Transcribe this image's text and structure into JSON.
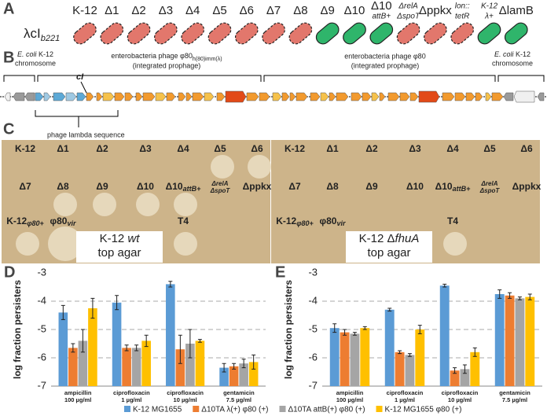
{
  "panel_a": {
    "label": "A",
    "lambda_text": "λcI",
    "lambda_sub": "b221",
    "strains": [
      {
        "lines": [
          "K-12"
        ],
        "color": "#e2776c"
      },
      {
        "lines": [
          "Δ1"
        ],
        "color": "#e2776c"
      },
      {
        "lines": [
          "Δ2"
        ],
        "color": "#e2776c"
      },
      {
        "lines": [
          "Δ3"
        ],
        "color": "#e2776c"
      },
      {
        "lines": [
          "Δ4"
        ],
        "color": "#e2776c"
      },
      {
        "lines": [
          "Δ5"
        ],
        "color": "#e2776c"
      },
      {
        "lines": [
          "Δ6"
        ],
        "color": "#e2776c"
      },
      {
        "lines": [
          "Δ7"
        ],
        "color": "#e2776c"
      },
      {
        "lines": [
          "Δ8"
        ],
        "color": "#e2776c"
      },
      {
        "lines": [
          "Δ9"
        ],
        "color": "#2fb56b"
      },
      {
        "lines": [
          "Δ10"
        ],
        "color": "#2fb56b"
      },
      {
        "lines": [
          "Δ10",
          "attB+"
        ],
        "color": "#2fb56b"
      },
      {
        "lines": [
          "ΔrelA",
          "ΔspoT"
        ],
        "color": "#e2776c"
      },
      {
        "lines": [
          "Δppkx"
        ],
        "color": "#e2776c"
      },
      {
        "lines": [
          "lon::",
          "tetR"
        ],
        "color": "#e2776c"
      },
      {
        "lines": [
          "K-12",
          "λ+"
        ],
        "color": "#2fb56b"
      },
      {
        "lines": [
          "ΔlamB"
        ],
        "color": "#2fb56b"
      }
    ]
  },
  "panel_b": {
    "label": "B",
    "chromosome_left": {
      "species": "E. coli",
      "strain": "K-12",
      "line2": "chromosome"
    },
    "chromosome_right": {
      "species": "E. coli",
      "strain": "K-12",
      "line2": "chromosome"
    },
    "prophage_1": {
      "name": "enterobacteria phage φ80",
      "sub": "h(80)imm(λ)",
      "note": "(integrated prophage)"
    },
    "prophage_2": {
      "name": "enterobacteria phage φ80",
      "note": "(integrated prophage)"
    },
    "gene": "cI",
    "lambda_region": "phage lambda sequence"
  },
  "panel_c": {
    "label": "C",
    "plates": [
      {
        "caption": [
          "K-12 ",
          "wt",
          "top agar"
        ],
        "rows": [
          [
            {
              "text": "K-12",
              "plaque": false
            },
            {
              "text": "Δ1",
              "plaque": false
            },
            {
              "text": "Δ2",
              "plaque": false
            },
            {
              "text": "Δ3",
              "plaque": false
            },
            {
              "text": "Δ4",
              "plaque": false
            },
            {
              "text": "Δ5",
              "plaque": true
            },
            {
              "text": "Δ6",
              "plaque": true
            }
          ],
          [
            {
              "text": "Δ7",
              "plaque": false
            },
            {
              "text": "Δ8",
              "plaque": true
            },
            {
              "text": "Δ9",
              "plaque": true
            },
            {
              "text": "Δ10",
              "plaque": true
            },
            {
              "text": "Δ10",
              "sub": "attB+",
              "plaque": true
            },
            {
              "text": "ΔrelA",
              "line2": "ΔspoT",
              "plaque": false
            },
            {
              "text": "Δppkx",
              "plaque": false
            }
          ],
          [
            {
              "text": "K-12",
              "sub": "φ80+",
              "plaque": true
            },
            {
              "text": "φ80",
              "sub": "vir",
              "plaque": true
            },
            {
              "text": "T4",
              "plaque": true
            }
          ]
        ]
      },
      {
        "caption": [
          "K-12 Δ",
          "fhuA",
          "top agar"
        ],
        "rows": [
          [
            {
              "text": "K-12",
              "plaque": false
            },
            {
              "text": "Δ1",
              "plaque": false
            },
            {
              "text": "Δ2",
              "plaque": false
            },
            {
              "text": "Δ3",
              "plaque": false
            },
            {
              "text": "Δ4",
              "plaque": false
            },
            {
              "text": "Δ5",
              "plaque": false
            },
            {
              "text": "Δ6",
              "plaque": false
            }
          ],
          [
            {
              "text": "Δ7",
              "plaque": false
            },
            {
              "text": "Δ8",
              "plaque": false
            },
            {
              "text": "Δ9",
              "plaque": false
            },
            {
              "text": "Δ10",
              "plaque": false
            },
            {
              "text": "Δ10",
              "sub": "attB+",
              "plaque": false
            },
            {
              "text": "ΔrelA",
              "line2": "ΔspoT",
              "plaque": false
            },
            {
              "text": "Δppkx",
              "plaque": false
            }
          ],
          [
            {
              "text": "K-12",
              "sub": "φ80+",
              "plaque": false
            },
            {
              "text": "φ80",
              "sub": "vir",
              "plaque": false
            },
            {
              "text": "T4",
              "plaque": true
            }
          ]
        ]
      }
    ]
  },
  "chart_data": [
    {
      "type": "bar",
      "label": "D",
      "y_label": "log fraction persisters",
      "categories": [
        "ampicillin",
        "ciprofloxacin",
        "ciprofloxacin",
        "gentamicin"
      ],
      "category_doses": [
        "100 µg/ml",
        "1 µg/ml",
        "10 µg/ml",
        "7.5 µg/ml"
      ],
      "ylim": [
        -7,
        -3
      ],
      "yticks": [
        -3,
        -4,
        -5,
        -6,
        -7
      ],
      "grid": true,
      "series": [
        {
          "name": "K-12 MG1655",
          "color": "#5b9bd5",
          "values": [
            -4.4,
            -4.05,
            -3.4,
            -6.35
          ],
          "errors": [
            0.25,
            0.25,
            0.1,
            0.15
          ]
        },
        {
          "name": "Δ10TA λ(+) φ80 (+)",
          "color": "#ed7d31",
          "values": [
            -5.65,
            -5.65,
            -5.7,
            -6.3
          ],
          "errors": [
            0.15,
            0.1,
            0.5,
            0.1
          ]
        },
        {
          "name": "Δ10TA attB(+) φ80 (+)",
          "color": "#a5a5a5",
          "values": [
            -5.4,
            -5.65,
            -5.5,
            -6.2
          ],
          "errors": [
            0.4,
            0.1,
            0.5,
            0.15
          ]
        },
        {
          "name": "K-12 MG1655 φ80 (+)",
          "color": "#ffc000",
          "values": [
            -4.25,
            -5.4,
            -5.4,
            -6.15
          ],
          "errors": [
            0.35,
            0.2,
            0.05,
            0.25
          ]
        }
      ]
    },
    {
      "type": "bar",
      "label": "E",
      "y_label": "log fraction persisters",
      "categories": [
        "ampicillin",
        "ciprofloxacin",
        "ciprofloxacin",
        "gentamicin"
      ],
      "category_doses": [
        "100 µg/ml",
        "1 µg/ml",
        "10 µg/ml",
        "7.5 µg/ml"
      ],
      "ylim": [
        -7,
        -3
      ],
      "yticks": [
        -3,
        -4,
        -5,
        -6,
        -7
      ],
      "grid": true,
      "series": [
        {
          "name": "K-12 MG1655",
          "color": "#5b9bd5",
          "values": [
            -4.95,
            -4.3,
            -3.45,
            -3.75
          ],
          "errors": [
            0.15,
            0.05,
            0.05,
            0.15
          ]
        },
        {
          "name": "Δ10TA λ(+) φ80 (+)",
          "color": "#ed7d31",
          "values": [
            -5.1,
            -5.8,
            -6.45,
            -3.8
          ],
          "errors": [
            0.1,
            0.05,
            0.1,
            0.1
          ]
        },
        {
          "name": "Δ10TA attB(+) φ80 (+)",
          "color": "#a5a5a5",
          "values": [
            -5.15,
            -5.9,
            -6.4,
            -3.9
          ],
          "errors": [
            0.05,
            0.05,
            0.15,
            0.05
          ]
        },
        {
          "name": "K-12 MG1655 φ80 (+)",
          "color": "#ffc000",
          "values": [
            -4.95,
            -5.0,
            -5.8,
            -3.85
          ],
          "errors": [
            0.05,
            0.15,
            0.15,
            0.1
          ]
        }
      ]
    }
  ]
}
